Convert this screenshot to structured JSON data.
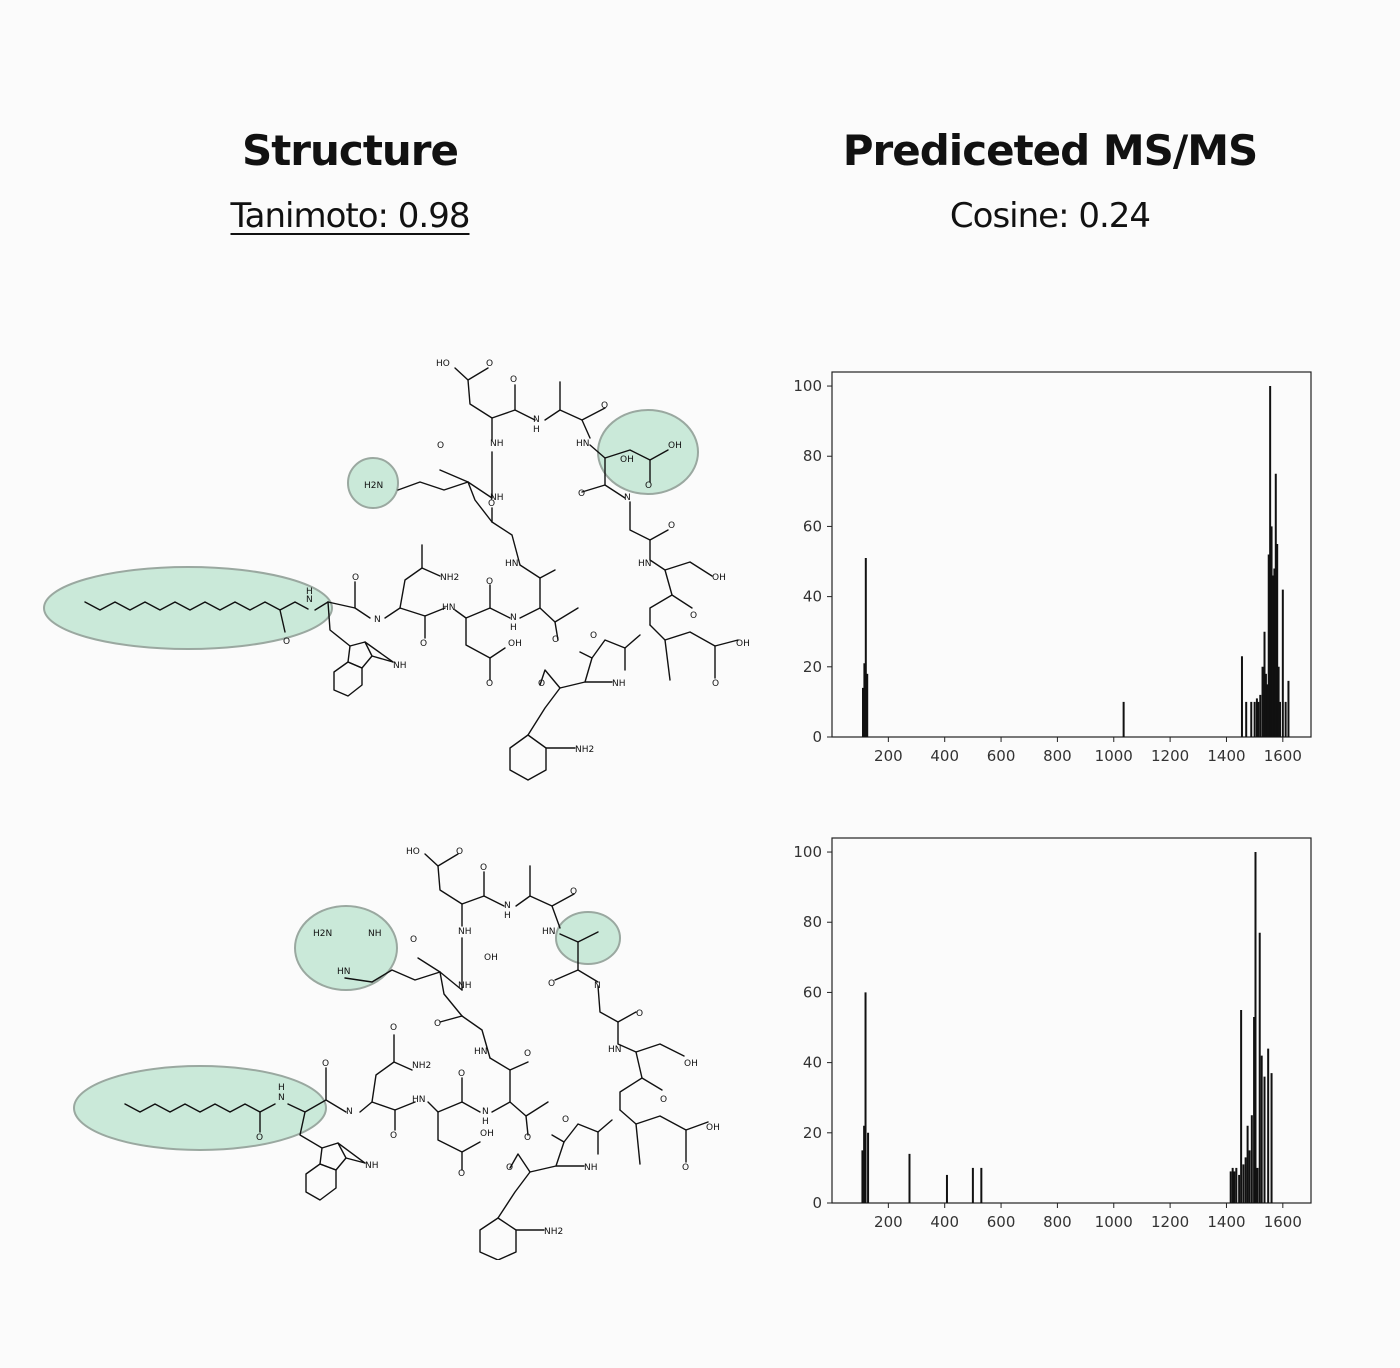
{
  "headers": {
    "structure_title": "Structure",
    "tanimoto_label": "Tanimoto: 0.98",
    "msms_title": "Prediceted MS/MS",
    "cosine_label": "Cosine: 0.24"
  },
  "molecule_labels": {
    "top": [
      "HO",
      "O",
      "O",
      "N",
      "H",
      "O",
      "HN",
      "O",
      "OH",
      "NH",
      "H2N",
      "NH",
      "O",
      "N",
      "O",
      "HN",
      "O",
      "O",
      "OH",
      "NH2",
      "HN",
      "N",
      "H",
      "N",
      "O",
      "N",
      "H",
      "O",
      "O",
      "HN",
      "O",
      "O",
      "OH",
      "NH",
      "O",
      "OH",
      "O",
      "NH",
      "O",
      "O",
      "NH2",
      "O",
      "OH"
    ],
    "bottom": [
      "HO",
      "O",
      "O",
      "N",
      "H",
      "O",
      "HN",
      "O",
      "NH",
      "H2N",
      "NH",
      "HN",
      "NH",
      "O",
      "N",
      "O",
      "O",
      "HN",
      "O",
      "O",
      "OH",
      "NH2",
      "HN",
      "N",
      "H",
      "N",
      "O",
      "N",
      "H",
      "O",
      "O",
      "HN",
      "O",
      "O",
      "OH",
      "NH",
      "O",
      "OH",
      "O",
      "NH",
      "O",
      "O",
      "NH2",
      "O",
      "OH"
    ]
  },
  "chart_data": [
    {
      "type": "bar",
      "xlim": [
        0,
        1700
      ],
      "ylim": [
        0,
        104
      ],
      "xticks": [
        200,
        400,
        600,
        800,
        1000,
        1200,
        1400,
        1600
      ],
      "yticks": [
        0,
        20,
        40,
        60,
        80,
        100
      ],
      "grid": false,
      "x": [
        110,
        115,
        120,
        125,
        1035,
        1455,
        1470,
        1488,
        1500,
        1508,
        1513,
        1520,
        1528,
        1535,
        1540,
        1545,
        1550,
        1555,
        1560,
        1565,
        1570,
        1575,
        1580,
        1585,
        1590,
        1600,
        1610,
        1620
      ],
      "values": [
        14,
        21,
        51,
        18,
        10,
        23,
        10,
        10,
        10,
        11,
        10,
        12,
        20,
        30,
        18,
        15,
        52,
        100,
        60,
        46,
        48,
        75,
        55,
        20,
        10,
        42,
        10,
        16
      ]
    },
    {
      "type": "bar",
      "xlim": [
        0,
        1700
      ],
      "ylim": [
        0,
        104
      ],
      "xticks": [
        200,
        400,
        600,
        800,
        1000,
        1200,
        1400,
        1600
      ],
      "yticks": [
        0,
        20,
        40,
        60,
        80,
        100
      ],
      "grid": false,
      "x": [
        108,
        114,
        119,
        128,
        275,
        408,
        500,
        530,
        1415,
        1422,
        1428,
        1435,
        1445,
        1452,
        1460,
        1468,
        1475,
        1482,
        1490,
        1498,
        1503,
        1510,
        1518,
        1525,
        1535,
        1548,
        1560
      ],
      "values": [
        15,
        22,
        60,
        20,
        14,
        8,
        10,
        10,
        9,
        10,
        9,
        10,
        8,
        55,
        11,
        13,
        22,
        15,
        25,
        53,
        100,
        10,
        77,
        42,
        36,
        44,
        37
      ]
    }
  ]
}
